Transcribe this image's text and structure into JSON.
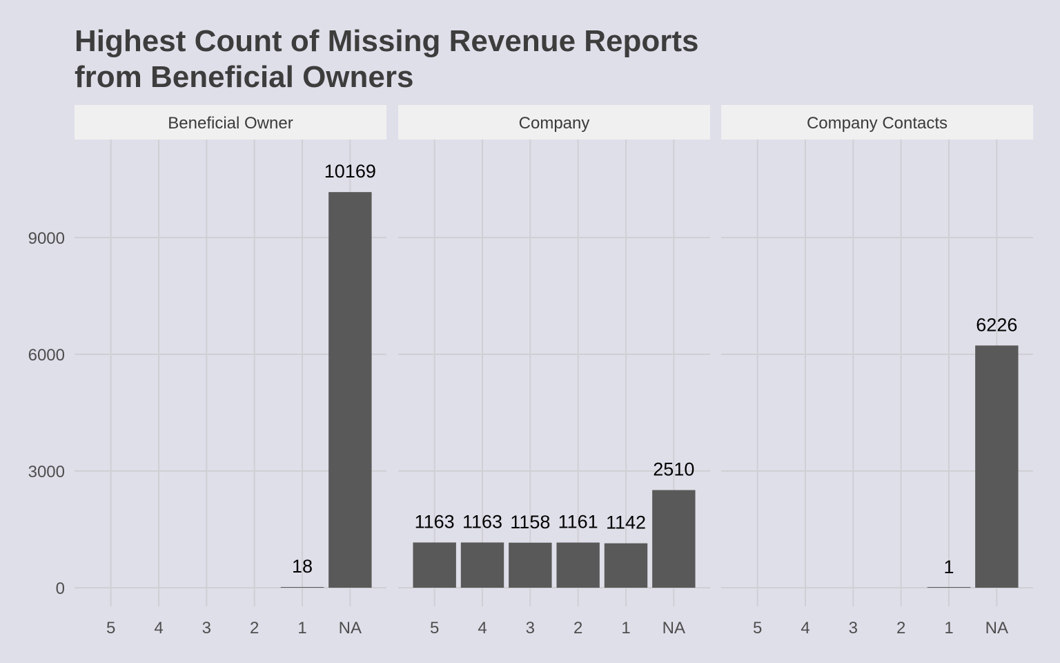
{
  "chart_data": {
    "type": "bar",
    "title": [
      "Highest Count of Missing Revenue Reports",
      "from Beneficial Owners"
    ],
    "xlabel": "",
    "ylabel": "",
    "ylim": [
      -700,
      11100
    ],
    "yticks": [
      0,
      3000,
      6000,
      9000
    ],
    "categories": [
      "5",
      "4",
      "3",
      "2",
      "1",
      "NA"
    ],
    "grid": true,
    "legend": "none",
    "colors": {
      "background": "#dfdfea",
      "bar": "#595959",
      "grid": "#cfcfd4",
      "strip": "#f0f0f0"
    },
    "facets": [
      {
        "name": "Beneficial Owner",
        "values": [
          null,
          null,
          null,
          null,
          18,
          10169
        ],
        "labels": [
          "",
          "",
          "",
          "",
          "18",
          "10169"
        ]
      },
      {
        "name": "Company",
        "values": [
          1163,
          1163,
          1158,
          1161,
          1142,
          2510
        ],
        "labels": [
          "1163",
          "1163",
          "1158",
          "1161",
          "1142",
          "2510"
        ]
      },
      {
        "name": "Company Contacts",
        "values": [
          null,
          null,
          null,
          null,
          1,
          6226
        ],
        "labels": [
          "",
          "",
          "",
          "",
          "1",
          "6226"
        ]
      }
    ]
  }
}
